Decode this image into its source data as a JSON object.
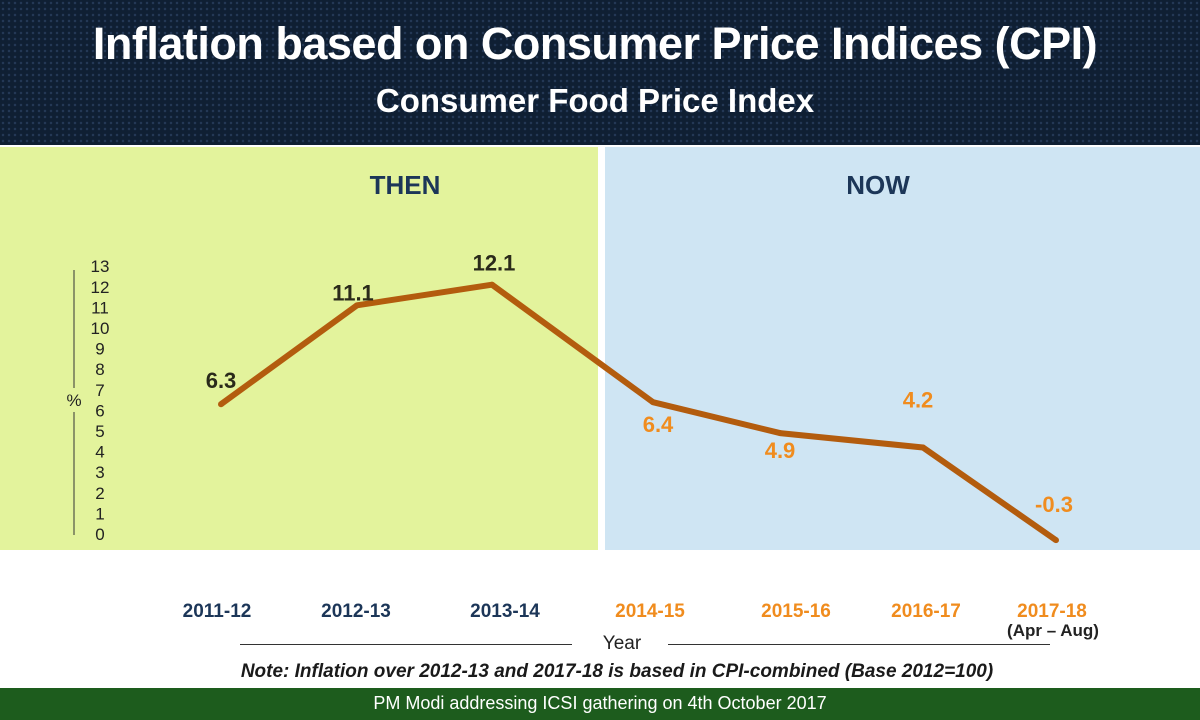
{
  "header": {
    "title": "Inflation based on Consumer Price Indices (CPI)",
    "subtitle": "Consumer Food Price Index"
  },
  "panels": {
    "then_label": "THEN",
    "now_label": "NOW"
  },
  "colors": {
    "then_bg": "#e3f39c",
    "now_bg": "#cfe5f3",
    "line": "#b35c0e",
    "then_text": "#1c3658",
    "now_text": "#f08c1e",
    "header_bg": "#0f1f33",
    "footer_bg": "#1d5c1d"
  },
  "chart_data": {
    "type": "line",
    "title": "Inflation based on Consumer Price Indices (CPI)",
    "subtitle": "Consumer Food Price Index",
    "ylabel": "%",
    "xlabel": "Year",
    "ylim": [
      0,
      13
    ],
    "y_ticks": [
      "0",
      "1",
      "2",
      "3",
      "4",
      "5",
      "6",
      "7",
      "8",
      "9",
      "10",
      "11",
      "12",
      "13"
    ],
    "categories": [
      "2011-12",
      "2012-13",
      "2013-14",
      "2014-15",
      "2015-16",
      "2016-17",
      "2017-18"
    ],
    "category_note": "(Apr – Aug)",
    "values": [
      6.3,
      11.1,
      12.1,
      6.4,
      4.9,
      4.2,
      -0.3
    ],
    "value_labels": [
      "6.3",
      "11.1",
      "12.1",
      "6.4",
      "4.9",
      "4.2",
      "-0.3"
    ],
    "grid": false
  },
  "note": "Note: Inflation over 2012-13 and 2017-18 is based in CPI-combined (Base 2012=100)",
  "footer": "PM Modi addressing ICSI gathering on 4th October 2017"
}
